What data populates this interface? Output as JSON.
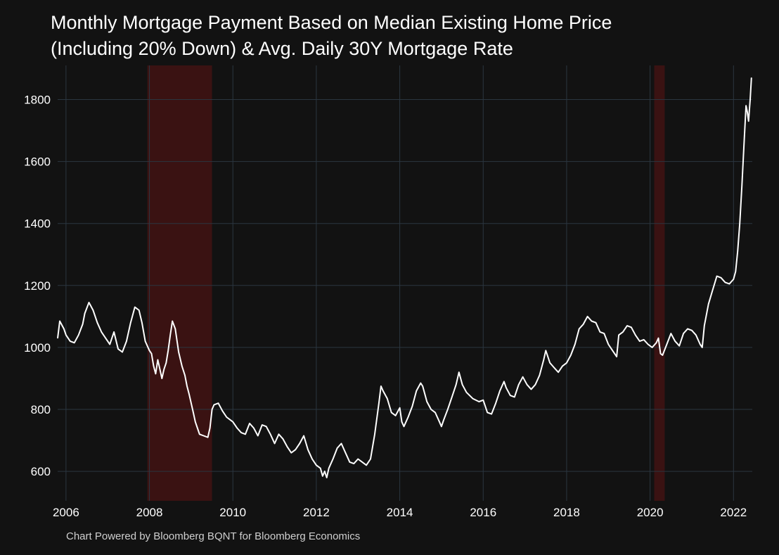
{
  "title_line1": "Monthly Mortgage Payment Based on Median Existing Home Price",
  "title_line2": "(Including 20% Down) & Avg. Daily 30Y Mortgage Rate",
  "footer": "Chart Powered by Bloomberg BQNT for Bloomberg Economics",
  "colors": {
    "background": "#121212",
    "grid": "#2b3640",
    "line": "#ffffff",
    "recession": "#3a1212",
    "text": "#ffffff"
  },
  "chart_data": {
    "type": "line",
    "title": "Monthly Mortgage Payment Based on Median Existing Home Price (Including 20% Down) & Avg. Daily 30Y Mortgage Rate",
    "xlabel": "",
    "ylabel": "",
    "xlim": [
      2005.8,
      2022.45
    ],
    "ylim": [
      505,
      1910
    ],
    "x_ticks": [
      2006,
      2008,
      2010,
      2012,
      2014,
      2016,
      2018,
      2020,
      2022
    ],
    "x_tick_labels": [
      "2006",
      "2008",
      "2010",
      "2012",
      "2014",
      "2016",
      "2018",
      "2020",
      "2022"
    ],
    "y_ticks": [
      600,
      800,
      1000,
      1200,
      1400,
      1600,
      1800
    ],
    "y_tick_labels": [
      "600",
      "800",
      "1000",
      "1200",
      "1400",
      "1600",
      "1800"
    ],
    "grid": true,
    "legend": "none",
    "recession_bands": [
      [
        2007.95,
        2009.5
      ],
      [
        2020.1,
        2020.35
      ]
    ],
    "series": [
      {
        "color": "#ffffff",
        "points": [
          [
            2005.8,
            1030
          ],
          [
            2005.85,
            1085
          ],
          [
            2005.95,
            1060
          ],
          [
            2006.0,
            1040
          ],
          [
            2006.1,
            1020
          ],
          [
            2006.2,
            1015
          ],
          [
            2006.3,
            1040
          ],
          [
            2006.4,
            1075
          ],
          [
            2006.45,
            1110
          ],
          [
            2006.55,
            1145
          ],
          [
            2006.65,
            1120
          ],
          [
            2006.75,
            1080
          ],
          [
            2006.85,
            1050
          ],
          [
            2006.95,
            1030
          ],
          [
            2007.05,
            1010
          ],
          [
            2007.15,
            1050
          ],
          [
            2007.25,
            995
          ],
          [
            2007.35,
            985
          ],
          [
            2007.45,
            1020
          ],
          [
            2007.55,
            1080
          ],
          [
            2007.65,
            1130
          ],
          [
            2007.75,
            1120
          ],
          [
            2007.82,
            1080
          ],
          [
            2007.9,
            1020
          ],
          [
            2008.0,
            990
          ],
          [
            2008.05,
            980
          ],
          [
            2008.1,
            940
          ],
          [
            2008.15,
            915
          ],
          [
            2008.2,
            960
          ],
          [
            2008.25,
            930
          ],
          [
            2008.3,
            900
          ],
          [
            2008.35,
            930
          ],
          [
            2008.4,
            950
          ],
          [
            2008.45,
            990
          ],
          [
            2008.5,
            1040
          ],
          [
            2008.55,
            1085
          ],
          [
            2008.62,
            1060
          ],
          [
            2008.7,
            985
          ],
          [
            2008.78,
            940
          ],
          [
            2008.85,
            910
          ],
          [
            2008.9,
            875
          ],
          [
            2008.95,
            850
          ],
          [
            2009.0,
            820
          ],
          [
            2009.05,
            790
          ],
          [
            2009.1,
            760
          ],
          [
            2009.15,
            740
          ],
          [
            2009.2,
            720
          ],
          [
            2009.3,
            715
          ],
          [
            2009.4,
            710
          ],
          [
            2009.45,
            740
          ],
          [
            2009.5,
            800
          ],
          [
            2009.55,
            815
          ],
          [
            2009.65,
            820
          ],
          [
            2009.75,
            795
          ],
          [
            2009.85,
            775
          ],
          [
            2010.0,
            760
          ],
          [
            2010.1,
            740
          ],
          [
            2010.2,
            725
          ],
          [
            2010.3,
            720
          ],
          [
            2010.4,
            755
          ],
          [
            2010.5,
            740
          ],
          [
            2010.6,
            715
          ],
          [
            2010.7,
            750
          ],
          [
            2010.8,
            745
          ],
          [
            2010.9,
            720
          ],
          [
            2011.0,
            690
          ],
          [
            2011.1,
            720
          ],
          [
            2011.2,
            705
          ],
          [
            2011.3,
            680
          ],
          [
            2011.4,
            660
          ],
          [
            2011.5,
            670
          ],
          [
            2011.6,
            690
          ],
          [
            2011.7,
            715
          ],
          [
            2011.8,
            670
          ],
          [
            2011.9,
            640
          ],
          [
            2012.0,
            620
          ],
          [
            2012.1,
            610
          ],
          [
            2012.15,
            585
          ],
          [
            2012.2,
            600
          ],
          [
            2012.25,
            580
          ],
          [
            2012.3,
            610
          ],
          [
            2012.4,
            640
          ],
          [
            2012.5,
            675
          ],
          [
            2012.6,
            690
          ],
          [
            2012.7,
            660
          ],
          [
            2012.8,
            630
          ],
          [
            2012.9,
            625
          ],
          [
            2013.0,
            640
          ],
          [
            2013.1,
            630
          ],
          [
            2013.2,
            620
          ],
          [
            2013.3,
            640
          ],
          [
            2013.4,
            720
          ],
          [
            2013.5,
            820
          ],
          [
            2013.55,
            875
          ],
          [
            2013.6,
            860
          ],
          [
            2013.7,
            835
          ],
          [
            2013.8,
            790
          ],
          [
            2013.9,
            780
          ],
          [
            2014.0,
            805
          ],
          [
            2014.05,
            760
          ],
          [
            2014.1,
            745
          ],
          [
            2014.2,
            775
          ],
          [
            2014.3,
            810
          ],
          [
            2014.4,
            860
          ],
          [
            2014.5,
            885
          ],
          [
            2014.55,
            875
          ],
          [
            2014.65,
            825
          ],
          [
            2014.75,
            800
          ],
          [
            2014.85,
            790
          ],
          [
            2014.95,
            760
          ],
          [
            2015.0,
            745
          ],
          [
            2015.05,
            765
          ],
          [
            2015.15,
            800
          ],
          [
            2015.25,
            840
          ],
          [
            2015.35,
            880
          ],
          [
            2015.42,
            920
          ],
          [
            2015.5,
            880
          ],
          [
            2015.6,
            855
          ],
          [
            2015.75,
            835
          ],
          [
            2015.9,
            825
          ],
          [
            2016.0,
            830
          ],
          [
            2016.1,
            790
          ],
          [
            2016.2,
            785
          ],
          [
            2016.3,
            820
          ],
          [
            2016.4,
            860
          ],
          [
            2016.5,
            890
          ],
          [
            2016.55,
            870
          ],
          [
            2016.65,
            845
          ],
          [
            2016.75,
            840
          ],
          [
            2016.85,
            880
          ],
          [
            2016.95,
            905
          ],
          [
            2017.05,
            880
          ],
          [
            2017.15,
            865
          ],
          [
            2017.25,
            880
          ],
          [
            2017.35,
            910
          ],
          [
            2017.45,
            960
          ],
          [
            2017.5,
            990
          ],
          [
            2017.6,
            950
          ],
          [
            2017.7,
            935
          ],
          [
            2017.8,
            920
          ],
          [
            2017.9,
            940
          ],
          [
            2018.0,
            950
          ],
          [
            2018.1,
            975
          ],
          [
            2018.2,
            1010
          ],
          [
            2018.3,
            1060
          ],
          [
            2018.4,
            1075
          ],
          [
            2018.5,
            1100
          ],
          [
            2018.6,
            1085
          ],
          [
            2018.7,
            1080
          ],
          [
            2018.8,
            1050
          ],
          [
            2018.9,
            1045
          ],
          [
            2019.0,
            1010
          ],
          [
            2019.1,
            990
          ],
          [
            2019.2,
            970
          ],
          [
            2019.25,
            1040
          ],
          [
            2019.35,
            1050
          ],
          [
            2019.45,
            1070
          ],
          [
            2019.55,
            1065
          ],
          [
            2019.65,
            1040
          ],
          [
            2019.75,
            1020
          ],
          [
            2019.85,
            1025
          ],
          [
            2019.95,
            1010
          ],
          [
            2020.05,
            1000
          ],
          [
            2020.15,
            1015
          ],
          [
            2020.2,
            1030
          ],
          [
            2020.25,
            980
          ],
          [
            2020.3,
            975
          ],
          [
            2020.4,
            1010
          ],
          [
            2020.5,
            1045
          ],
          [
            2020.6,
            1020
          ],
          [
            2020.7,
            1005
          ],
          [
            2020.8,
            1045
          ],
          [
            2020.9,
            1060
          ],
          [
            2021.0,
            1055
          ],
          [
            2021.1,
            1040
          ],
          [
            2021.2,
            1010
          ],
          [
            2021.25,
            1000
          ],
          [
            2021.3,
            1070
          ],
          [
            2021.4,
            1140
          ],
          [
            2021.5,
            1185
          ],
          [
            2021.6,
            1230
          ],
          [
            2021.7,
            1225
          ],
          [
            2021.8,
            1210
          ],
          [
            2021.9,
            1205
          ],
          [
            2022.0,
            1220
          ],
          [
            2022.05,
            1245
          ],
          [
            2022.1,
            1310
          ],
          [
            2022.15,
            1400
          ],
          [
            2022.2,
            1520
          ],
          [
            2022.25,
            1650
          ],
          [
            2022.3,
            1780
          ],
          [
            2022.33,
            1760
          ],
          [
            2022.36,
            1730
          ],
          [
            2022.4,
            1800
          ],
          [
            2022.43,
            1870
          ]
        ]
      }
    ]
  }
}
